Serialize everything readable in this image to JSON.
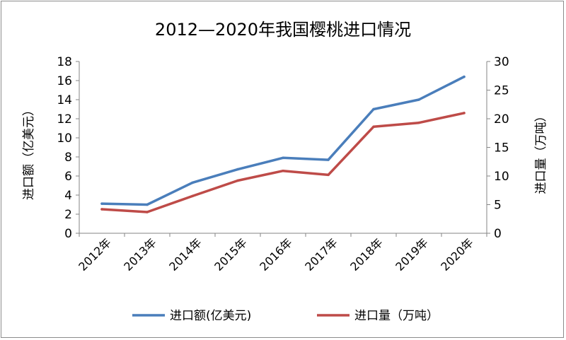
{
  "chart_data": {
    "type": "line",
    "title": "2012—2020年我国樱桃进口情况",
    "ylabel": "进口额（亿美元）",
    "y2label": "进口量（万吨）",
    "categories": [
      "2012年",
      "2013年",
      "2014年",
      "2015年",
      "2016年",
      "2017年",
      "2018年",
      "2019年",
      "2020年"
    ],
    "ylim": [
      0,
      18
    ],
    "y2lim": [
      0,
      30
    ],
    "yticks": [
      "0",
      "2",
      "4",
      "6",
      "8",
      "10",
      "12",
      "14",
      "16",
      "18"
    ],
    "y2ticks": [
      "0",
      "5",
      "10",
      "15",
      "20",
      "25",
      "30"
    ],
    "grid": false,
    "legend_position": "bottom",
    "series": [
      {
        "name": "进口额(亿美元)",
        "axis": "left",
        "color": "#4a7ebb",
        "values": [
          3.1,
          3.0,
          5.3,
          6.7,
          7.9,
          7.7,
          13.0,
          14.0,
          16.4
        ]
      },
      {
        "name": "进口量（万吨）",
        "axis": "right",
        "color": "#be4b48",
        "values": [
          4.2,
          3.7,
          6.5,
          9.2,
          10.9,
          10.2,
          18.6,
          19.3,
          21.0
        ]
      }
    ]
  }
}
